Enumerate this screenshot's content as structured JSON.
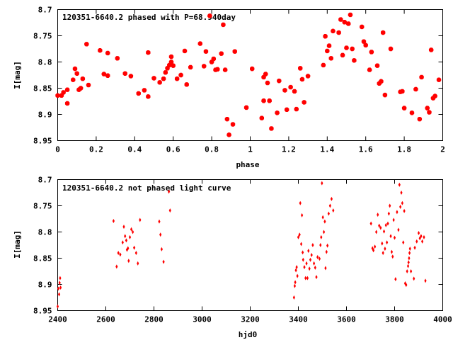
{
  "colors": {
    "points": "#ff0000",
    "frame": "#000000",
    "background": "#ffffff"
  },
  "chart_data": [
    {
      "type": "scatter",
      "title": "120351-6640.2 phased with P=68.940day",
      "xlabel": "phase",
      "ylabel": "I[mag]",
      "xlim": [
        0,
        2
      ],
      "ylim": [
        8.95,
        8.7
      ],
      "y_inverted": true,
      "grid": false,
      "legend": "none",
      "marker": "filled-octagon",
      "xticks": [
        0,
        0.2,
        0.4,
        0.6,
        0.8,
        1.0,
        1.2,
        1.4,
        1.6,
        1.8,
        2.0
      ],
      "xtick_labels": [
        "0",
        "0.2",
        "0.4",
        "0.6",
        "0.8",
        "1",
        "1.2",
        "1.4",
        "1.6",
        "1.8",
        "2"
      ],
      "yticks": [
        8.7,
        8.75,
        8.8,
        8.85,
        8.9,
        8.95
      ],
      "ytick_labels": [
        "8.7",
        "8.75",
        "8.8",
        "8.85",
        "8.9",
        "8.95"
      ],
      "series": [
        {
          "points": [
            [
              0.0,
              8.864
            ],
            [
              0.02,
              8.864
            ],
            [
              0.03,
              8.858
            ],
            [
              0.05,
              8.853
            ],
            [
              0.05,
              8.879
            ],
            [
              0.08,
              8.834
            ],
            [
              0.09,
              8.813
            ],
            [
              0.1,
              8.822
            ],
            [
              0.11,
              8.853
            ],
            [
              0.12,
              8.85
            ],
            [
              0.13,
              8.832
            ],
            [
              0.15,
              8.766
            ],
            [
              0.16,
              8.844
            ],
            [
              0.22,
              8.778
            ],
            [
              0.24,
              8.823
            ],
            [
              0.26,
              8.826
            ],
            [
              0.26,
              8.783
            ],
            [
              0.31,
              8.793
            ],
            [
              0.35,
              8.822
            ],
            [
              0.38,
              8.827
            ],
            [
              0.42,
              8.86
            ],
            [
              0.45,
              8.854
            ],
            [
              0.47,
              8.866
            ],
            [
              0.47,
              8.782
            ],
            [
              0.5,
              8.831
            ],
            [
              0.53,
              8.839
            ],
            [
              0.55,
              8.832
            ],
            [
              0.56,
              8.82
            ],
            [
              0.57,
              8.812
            ],
            [
              0.58,
              8.806
            ],
            [
              0.59,
              8.79
            ],
            [
              0.59,
              8.8
            ],
            [
              0.6,
              8.807
            ],
            [
              0.62,
              8.832
            ],
            [
              0.64,
              8.825
            ],
            [
              0.66,
              8.779
            ],
            [
              0.67,
              8.843
            ],
            [
              0.69,
              8.81
            ],
            [
              0.74,
              8.765
            ],
            [
              0.76,
              8.808
            ],
            [
              0.77,
              8.78
            ],
            [
              0.79,
              8.712
            ],
            [
              0.8,
              8.8
            ],
            [
              0.81,
              8.794
            ],
            [
              0.82,
              8.815
            ],
            [
              0.83,
              8.814
            ],
            [
              0.85,
              8.784
            ],
            [
              0.86,
              8.729
            ],
            [
              0.87,
              8.815
            ],
            [
              0.88,
              8.909
            ],
            [
              0.89,
              8.939
            ],
            [
              0.91,
              8.919
            ],
            [
              0.92,
              8.78
            ],
            [
              0.98,
              8.887
            ],
            [
              1.01,
              8.813
            ],
            [
              1.06,
              8.907
            ],
            [
              1.07,
              8.874
            ],
            [
              1.07,
              8.829
            ],
            [
              1.08,
              8.823
            ],
            [
              1.09,
              8.84
            ],
            [
              1.1,
              8.874
            ],
            [
              1.11,
              8.927
            ],
            [
              1.14,
              8.897
            ],
            [
              1.15,
              8.836
            ],
            [
              1.18,
              8.854
            ],
            [
              1.19,
              8.891
            ],
            [
              1.21,
              8.848
            ],
            [
              1.23,
              8.856
            ],
            [
              1.24,
              8.89
            ],
            [
              1.26,
              8.812
            ],
            [
              1.27,
              8.833
            ],
            [
              1.28,
              8.877
            ],
            [
              1.3,
              8.827
            ],
            [
              1.38,
              8.806
            ],
            [
              1.39,
              8.751
            ],
            [
              1.4,
              8.779
            ],
            [
              1.41,
              8.769
            ],
            [
              1.42,
              8.793
            ],
            [
              1.43,
              8.741
            ],
            [
              1.46,
              8.744
            ],
            [
              1.47,
              8.719
            ],
            [
              1.48,
              8.787
            ],
            [
              1.49,
              8.724
            ],
            [
              1.5,
              8.773
            ],
            [
              1.51,
              8.727
            ],
            [
              1.52,
              8.71
            ],
            [
              1.53,
              8.775
            ],
            [
              1.54,
              8.797
            ],
            [
              1.58,
              8.733
            ],
            [
              1.59,
              8.761
            ],
            [
              1.6,
              8.768
            ],
            [
              1.62,
              8.815
            ],
            [
              1.63,
              8.781
            ],
            [
              1.66,
              8.807
            ],
            [
              1.67,
              8.841
            ],
            [
              1.68,
              8.837
            ],
            [
              1.69,
              8.744
            ],
            [
              1.7,
              8.863
            ],
            [
              1.73,
              8.775
            ],
            [
              1.78,
              8.857
            ],
            [
              1.79,
              8.856
            ],
            [
              1.8,
              8.888
            ],
            [
              1.84,
              8.897
            ],
            [
              1.86,
              8.852
            ],
            [
              1.88,
              8.909
            ],
            [
              1.89,
              8.829
            ],
            [
              1.92,
              8.888
            ],
            [
              1.93,
              8.896
            ],
            [
              1.94,
              8.777
            ],
            [
              1.95,
              8.869
            ],
            [
              1.96,
              8.865
            ],
            [
              1.98,
              8.834
            ]
          ]
        }
      ]
    },
    {
      "type": "scatter",
      "title": "120351-6640.2 not phased light curve",
      "xlabel": "hjd0",
      "ylabel": "I[mag]",
      "xlim": [
        2400,
        4000
      ],
      "ylim": [
        8.95,
        8.7
      ],
      "y_inverted": true,
      "grid": false,
      "legend": "none",
      "marker": "small-diamond",
      "xticks": [
        2400,
        2600,
        2800,
        3000,
        3200,
        3400,
        3600,
        3800,
        4000
      ],
      "xtick_labels": [
        "2400",
        "2600",
        "2800",
        "3000",
        "3200",
        "3400",
        "3600",
        "3800",
        "4000"
      ],
      "yticks": [
        8.7,
        8.75,
        8.8,
        8.85,
        8.9,
        8.95
      ],
      "ytick_labels": [
        "8.7",
        "8.75",
        "8.8",
        "8.85",
        "8.9",
        "8.95"
      ],
      "series": [
        {
          "points": [
            [
              2400,
              8.942
            ],
            [
              2403,
              8.908
            ],
            [
              2406,
              8.919
            ],
            [
              2408,
              8.897
            ],
            [
              2410,
              8.888
            ],
            [
              2412,
              8.906
            ],
            [
              2632,
              8.779
            ],
            [
              2645,
              8.866
            ],
            [
              2652,
              8.84
            ],
            [
              2660,
              8.843
            ],
            [
              2670,
              8.82
            ],
            [
              2675,
              8.79
            ],
            [
              2680,
              8.808
            ],
            [
              2685,
              8.816
            ],
            [
              2688,
              8.834
            ],
            [
              2692,
              8.831
            ],
            [
              2695,
              8.855
            ],
            [
              2700,
              8.81
            ],
            [
              2706,
              8.795
            ],
            [
              2712,
              8.8
            ],
            [
              2718,
              8.83
            ],
            [
              2726,
              8.84
            ],
            [
              2733,
              8.86
            ],
            [
              2742,
              8.777
            ],
            [
              2822,
              8.78
            ],
            [
              2827,
              8.805
            ],
            [
              2832,
              8.833
            ],
            [
              2840,
              8.857
            ],
            [
              2862,
              8.723
            ],
            [
              2867,
              8.759
            ],
            [
              3382,
              8.925
            ],
            [
              3385,
              8.903
            ],
            [
              3387,
              8.896
            ],
            [
              3390,
              8.873
            ],
            [
              3393,
              8.867
            ],
            [
              3396,
              8.884
            ],
            [
              3400,
              8.81
            ],
            [
              3405,
              8.805
            ],
            [
              3408,
              8.745
            ],
            [
              3412,
              8.823
            ],
            [
              3415,
              8.768
            ],
            [
              3418,
              8.839
            ],
            [
              3420,
              8.853
            ],
            [
              3425,
              8.867
            ],
            [
              3430,
              8.888
            ],
            [
              3434,
              8.86
            ],
            [
              3438,
              8.888
            ],
            [
              3442,
              8.836
            ],
            [
              3446,
              8.87
            ],
            [
              3450,
              8.853
            ],
            [
              3455,
              8.844
            ],
            [
              3460,
              8.825
            ],
            [
              3465,
              8.86
            ],
            [
              3470,
              8.868
            ],
            [
              3475,
              8.886
            ],
            [
              3480,
              8.848
            ],
            [
              3488,
              8.851
            ],
            [
              3492,
              8.825
            ],
            [
              3495,
              8.81
            ],
            [
              3498,
              8.707
            ],
            [
              3502,
              8.772
            ],
            [
              3506,
              8.8
            ],
            [
              3510,
              8.78
            ],
            [
              3513,
              8.869
            ],
            [
              3517,
              8.838
            ],
            [
              3521,
              8.826
            ],
            [
              3526,
              8.765
            ],
            [
              3532,
              8.75
            ],
            [
              3538,
              8.737
            ],
            [
              3545,
              8.759
            ],
            [
              3702,
              8.784
            ],
            [
              3708,
              8.831
            ],
            [
              3712,
              8.835
            ],
            [
              3718,
              8.828
            ],
            [
              3724,
              8.8
            ],
            [
              3730,
              8.767
            ],
            [
              3736,
              8.788
            ],
            [
              3742,
              8.792
            ],
            [
              3748,
              8.822
            ],
            [
              3752,
              8.84
            ],
            [
              3756,
              8.799
            ],
            [
              3760,
              8.832
            ],
            [
              3764,
              8.787
            ],
            [
              3768,
              8.82
            ],
            [
              3772,
              8.784
            ],
            [
              3776,
              8.765
            ],
            [
              3780,
              8.75
            ],
            [
              3784,
              8.808
            ],
            [
              3788,
              8.838
            ],
            [
              3792,
              8.847
            ],
            [
              3796,
              8.777
            ],
            [
              3800,
              8.811
            ],
            [
              3804,
              8.89
            ],
            [
              3810,
              8.762
            ],
            [
              3816,
              8.796
            ],
            [
              3820,
              8.71
            ],
            [
              3824,
              8.752
            ],
            [
              3828,
              8.725
            ],
            [
              3832,
              8.745
            ],
            [
              3836,
              8.82
            ],
            [
              3840,
              8.76
            ],
            [
              3844,
              8.898
            ],
            [
              3848,
              8.901
            ],
            [
              3852,
              8.875
            ],
            [
              3856,
              8.865
            ],
            [
              3858,
              8.858
            ],
            [
              3860,
              8.85
            ],
            [
              3862,
              8.84
            ],
            [
              3864,
              8.832
            ],
            [
              3868,
              8.875
            ],
            [
              3880,
              8.889
            ],
            [
              3884,
              8.83
            ],
            [
              3892,
              8.818
            ],
            [
              3900,
              8.802
            ],
            [
              3905,
              8.812
            ],
            [
              3910,
              8.808
            ],
            [
              3915,
              8.818
            ],
            [
              3922,
              8.81
            ],
            [
              3928,
              8.893
            ]
          ]
        }
      ]
    }
  ]
}
